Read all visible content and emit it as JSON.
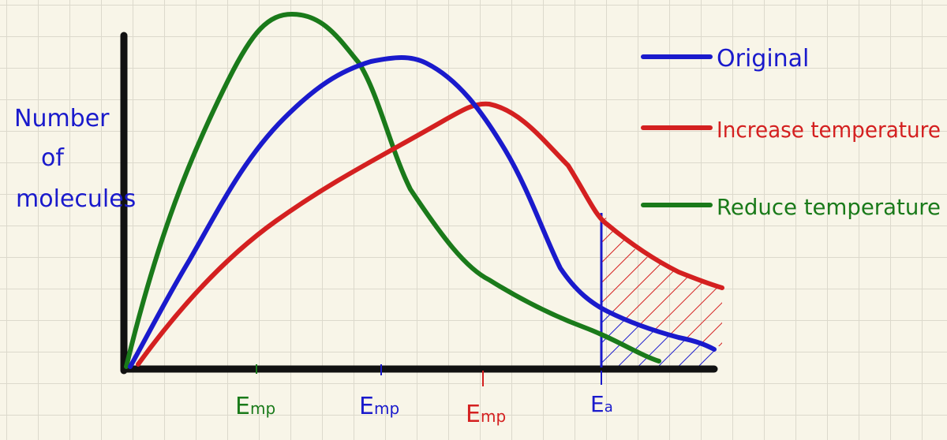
{
  "y_axis_label": [
    "Number",
    "of",
    "molecules"
  ],
  "legend": [
    "Original",
    "Increase temperature",
    "Reduce temperature"
  ],
  "markers": [
    {
      "main": "E",
      "sub": "mp"
    },
    {
      "main": "E",
      "sub": "mp"
    },
    {
      "main": "E",
      "sub": "mp"
    },
    {
      "main": "E",
      "sub": "a"
    }
  ]
}
